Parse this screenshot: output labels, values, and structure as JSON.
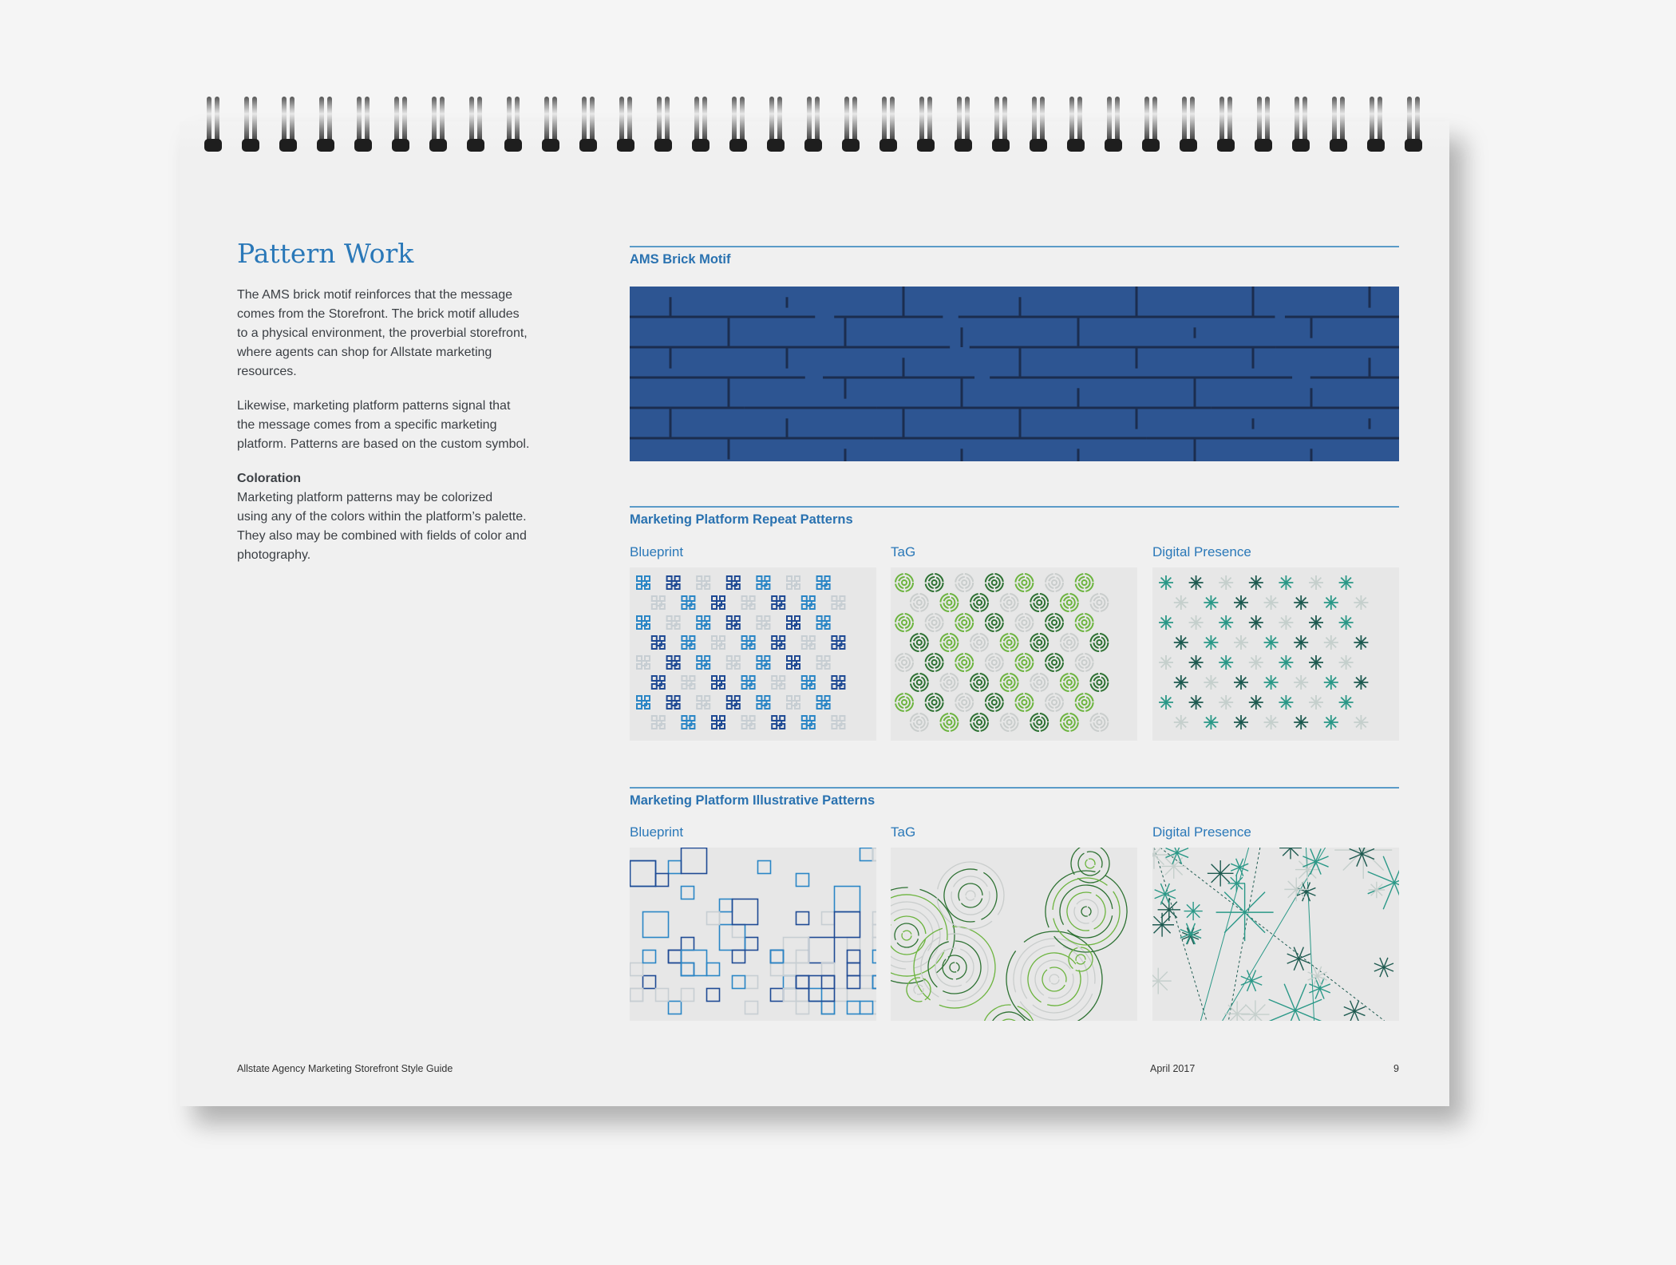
{
  "page": {
    "title": "Pattern Work",
    "intro_paragraph_lines": [
      "The AMS brick motif reinforces that the message",
      "comes from the Storefront. The brick motif alludes",
      "to a physical environment, the proverbial storefront,",
      "where agents can shop for Allstate marketing",
      "resources."
    ],
    "second_paragraph_lines": [
      "Likewise, marketing platform patterns signal that",
      "the message comes from a specific marketing",
      "platform. Patterns are based on the custom symbol."
    ],
    "coloration": {
      "heading": "Coloration",
      "lines": [
        "Marketing platform patterns may be colorized",
        "using any of the colors within the platform’s palette.",
        "They also may be combined with fields of color and",
        "photography."
      ]
    }
  },
  "brick_section": {
    "heading": "AMS Brick Motif",
    "fill": "#2d5592",
    "mortar": "#1b2d4f"
  },
  "repeat_section": {
    "heading": "Marketing Platform Repeat Patterns",
    "tiles": [
      {
        "label": "Blueprint",
        "icon": "blueprint-symbol",
        "colors": [
          "#2a86c6",
          "#1f4a94",
          "#c7ced3"
        ]
      },
      {
        "label": "TaG",
        "icon": "tag-concentric-symbol",
        "colors": [
          "#6cb43f",
          "#2d7132",
          "#c9cdcc"
        ]
      },
      {
        "label": "Digital Presence",
        "icon": "asterisk-symbol",
        "colors": [
          "#2a9887",
          "#1e5a50",
          "#c5cfcc"
        ]
      }
    ]
  },
  "illustrative_section": {
    "heading": "Marketing Platform Illustrative Patterns",
    "tiles": [
      {
        "label": "Blueprint"
      },
      {
        "label": "TaG"
      },
      {
        "label": "Digital Presence"
      }
    ]
  },
  "footer": {
    "guide_title": "Allstate Agency Marketing Storefront Style Guide",
    "date": "April 2017",
    "page_number": "9"
  },
  "accent_color": "#2a78b8"
}
